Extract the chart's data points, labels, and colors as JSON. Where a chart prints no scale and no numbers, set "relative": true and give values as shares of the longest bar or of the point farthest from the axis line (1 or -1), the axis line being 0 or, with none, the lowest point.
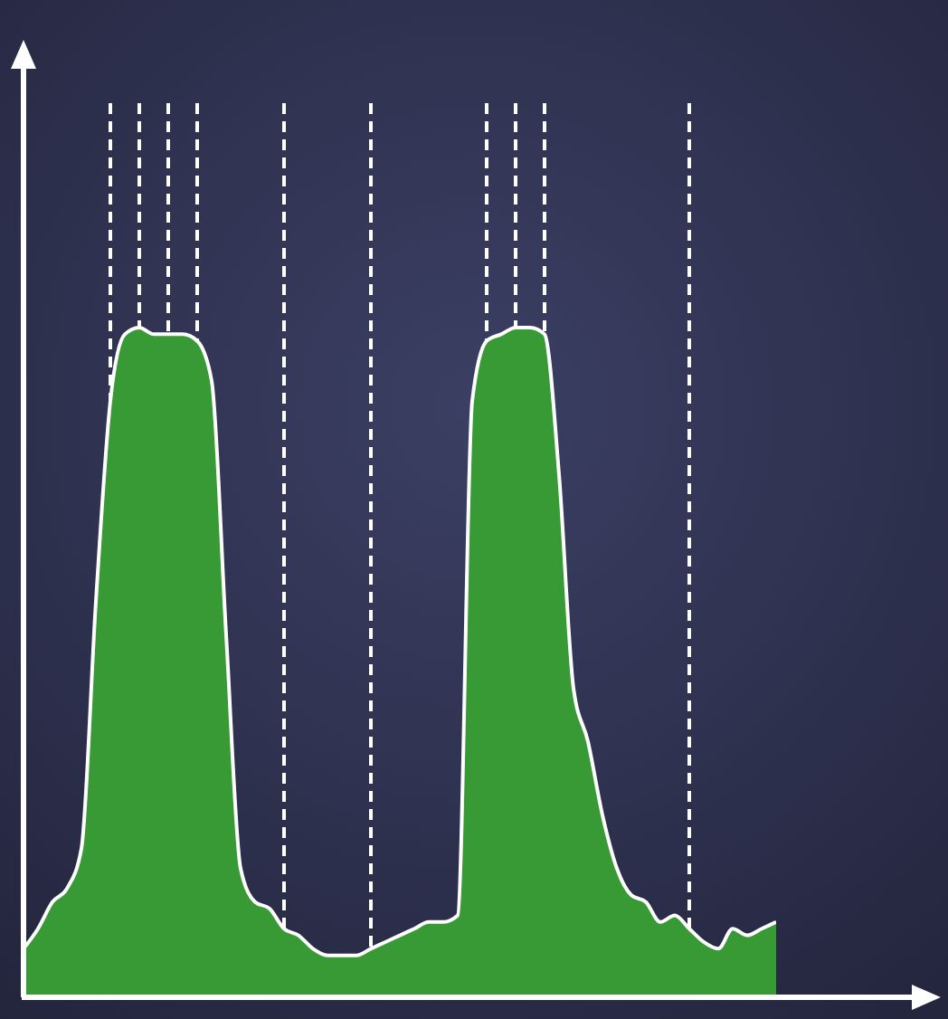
{
  "chart_data": {
    "type": "area",
    "relative": true,
    "color": "#379a34",
    "grid": "x",
    "categories": [
      null,
      null,
      null,
      null,
      null,
      null,
      null,
      null,
      null,
      null,
      null,
      null,
      null,
      null,
      null,
      null,
      null,
      null,
      null,
      null,
      null,
      null,
      null,
      null,
      null,
      null,
      null,
      null,
      null,
      null,
      null,
      null,
      null,
      null,
      null,
      null,
      null,
      null,
      null,
      null,
      null,
      null,
      null,
      null,
      null,
      null,
      null,
      null,
      null,
      null,
      null,
      null,
      null
    ],
    "values": [
      0.07,
      0.1,
      0.14,
      0.16,
      0.22,
      0.59,
      0.89,
      0.99,
      1,
      0.99,
      0.99,
      0.99,
      0.98,
      0.92,
      0.54,
      0.19,
      0.14,
      0.13,
      0.1,
      0.09,
      0.07,
      0.06,
      0.06,
      0.06,
      0.07,
      0.08,
      0.09,
      0.1,
      0.11,
      0.11,
      0.12,
      0.89,
      0.98,
      0.99,
      1,
      1,
      0.99,
      0.78,
      0.46,
      0.38,
      0.27,
      0.19,
      0.15,
      0.14,
      0.11,
      0.12,
      0.1,
      0.08,
      0.07,
      0.1,
      0.09,
      0.1,
      0.11
    ]
  }
}
